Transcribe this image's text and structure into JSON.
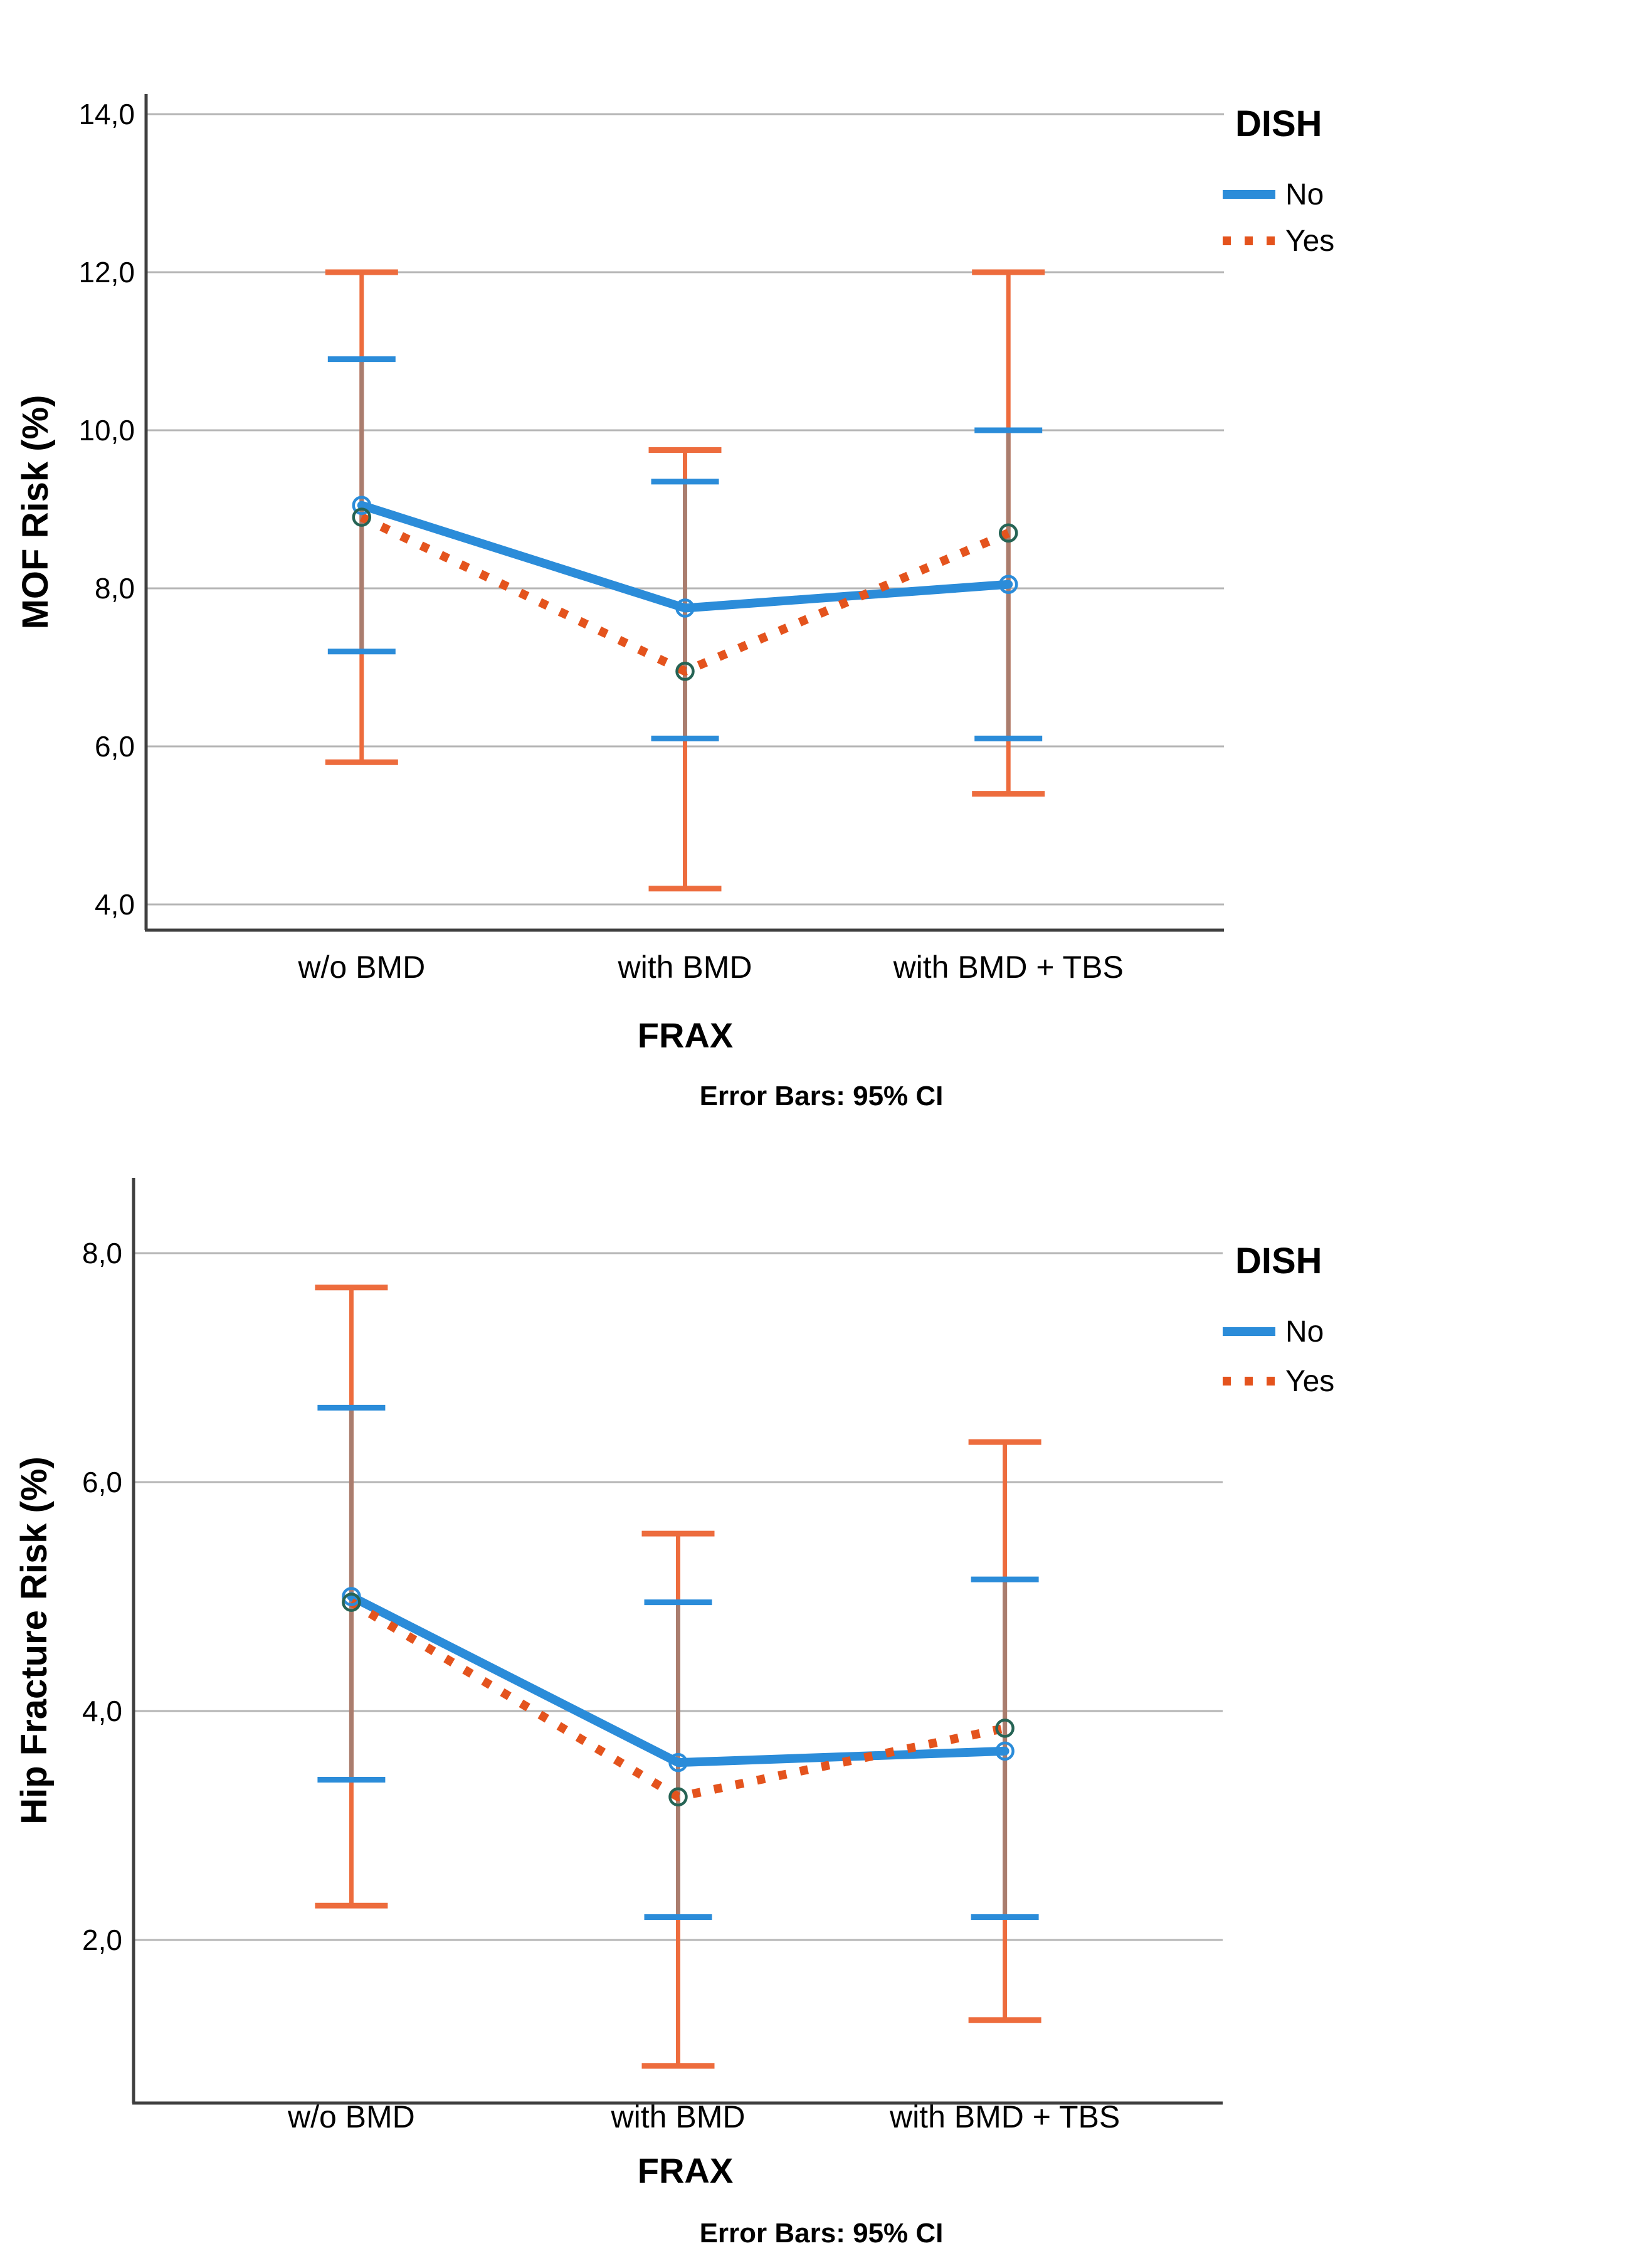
{
  "page": {
    "background": "#ffffff"
  },
  "colors": {
    "no_series": "#2B8CD9",
    "yes_series": "#E4531D",
    "error_bar": "#ED6C3D",
    "error_bar_overlap": "#AA7D6E",
    "no_marker_ring": "#2B8CD9",
    "yes_marker_ring": "#266455",
    "gridline": "#B5B5B5",
    "axis": "#3F3F3F",
    "text": "#000000"
  },
  "legend": {
    "title": "DISH",
    "items": [
      {
        "label": "No",
        "style": "solid"
      },
      {
        "label": "Yes",
        "style": "dotted"
      }
    ]
  },
  "chart_data": [
    {
      "type": "line",
      "title": "",
      "ylabel": "MOF Risk (%)",
      "xlabel": "FRAX",
      "caption": "Error Bars: 95% CI",
      "categories": [
        "w/o BMD",
        "with BMD",
        "with BMD + TBS"
      ],
      "yticks": [
        14,
        12,
        10,
        8,
        6,
        4
      ],
      "ytick_labels": [
        "14,0",
        "12,0",
        "10,0",
        "8,0",
        "6,0",
        "4,0"
      ],
      "ylim": [
        3.7,
        14.5
      ],
      "grid": true,
      "legend_position": "top-right",
      "error_bars": "95% CI",
      "series": [
        {
          "name": "No",
          "style": "solid",
          "values": [
            9.05,
            7.75,
            8.05
          ],
          "ci_low": [
            7.2,
            6.1,
            6.1
          ],
          "ci_high": [
            10.9,
            9.35,
            10.0
          ]
        },
        {
          "name": "Yes",
          "style": "dotted",
          "values": [
            8.9,
            6.95,
            8.7
          ],
          "ci_low": [
            5.8,
            4.2,
            5.4
          ],
          "ci_high": [
            12.0,
            9.75,
            12.0
          ]
        }
      ]
    },
    {
      "type": "line",
      "title": "",
      "ylabel": "Hip Fracture Risk (%)",
      "xlabel": "FRAX",
      "caption": "Error Bars: 95% CI",
      "categories": [
        "w/o BMD",
        "with BMD",
        "with BMD + TBS"
      ],
      "yticks": [
        8,
        6,
        4,
        2
      ],
      "ytick_labels": [
        "8,0",
        "6,0",
        "4,0",
        "2,0"
      ],
      "ylim": [
        0.55,
        8.6
      ],
      "grid": true,
      "legend_position": "top-right",
      "error_bars": "95% CI",
      "series": [
        {
          "name": "No",
          "style": "solid",
          "values": [
            5.0,
            3.55,
            3.65
          ],
          "ci_low": [
            3.4,
            2.2,
            2.2
          ],
          "ci_high": [
            6.65,
            4.95,
            5.15
          ]
        },
        {
          "name": "Yes",
          "style": "dotted",
          "values": [
            4.95,
            3.25,
            3.85
          ],
          "ci_low": [
            2.3,
            0.9,
            1.3
          ],
          "ci_high": [
            7.7,
            5.55,
            6.35
          ]
        }
      ]
    }
  ]
}
